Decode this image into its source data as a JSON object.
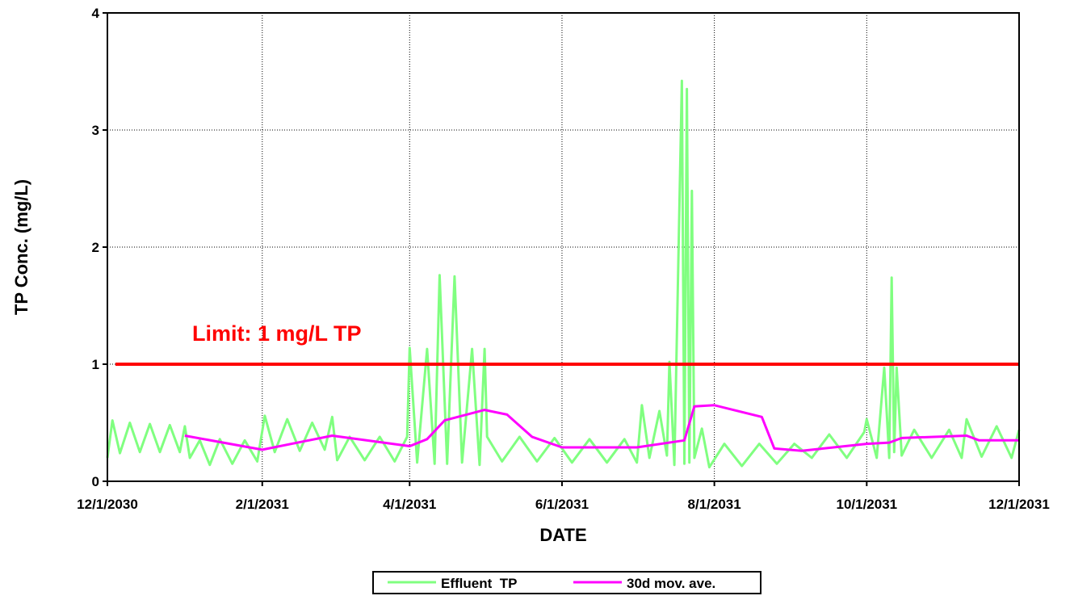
{
  "chart_data": {
    "type": "line",
    "xlabel": "DATE",
    "ylabel": "TP Conc. (mg/L)",
    "xlim": [
      "2030-12-01",
      "2031-12-01"
    ],
    "xticks": [
      {
        "value": "2030-12-01",
        "label": "12/1/2030"
      },
      {
        "value": "2031-02-01",
        "label": "2/1/2031"
      },
      {
        "value": "2031-04-01",
        "label": "4/1/2031"
      },
      {
        "value": "2031-06-01",
        "label": "6/1/2031"
      },
      {
        "value": "2031-08-01",
        "label": "8/1/2031"
      },
      {
        "value": "2031-10-01",
        "label": "10/1/2031"
      },
      {
        "value": "2031-12-01",
        "label": "12/1/2031"
      }
    ],
    "ylim": [
      0,
      4
    ],
    "yticks": [
      0,
      1,
      2,
      3,
      4
    ],
    "grid": true,
    "legend": "bottom",
    "limit": {
      "value": 1,
      "label": "Limit: 1 mg/L TP",
      "color": "#ff0000"
    },
    "series": [
      {
        "name": "Effluent  TP",
        "color": "#80ff80",
        "x": [
          "2030-12-01",
          "2030-12-03",
          "2030-12-06",
          "2030-12-10",
          "2030-12-14",
          "2030-12-18",
          "2030-12-22",
          "2030-12-26",
          "2030-12-30",
          "2031-01-01",
          "2031-01-03",
          "2031-01-07",
          "2031-01-11",
          "2031-01-15",
          "2031-01-20",
          "2031-01-25",
          "2031-01-30",
          "2031-02-02",
          "2031-02-06",
          "2031-02-11",
          "2031-02-16",
          "2031-02-21",
          "2031-02-26",
          "2031-03-01",
          "2031-03-03",
          "2031-03-08",
          "2031-03-14",
          "2031-03-20",
          "2031-03-26",
          "2031-03-31",
          "2031-04-01",
          "2031-04-04",
          "2031-04-08",
          "2031-04-11",
          "2031-04-13",
          "2031-04-16",
          "2031-04-19",
          "2031-04-22",
          "2031-04-26",
          "2031-04-29",
          "2031-05-01",
          "2031-05-02",
          "2031-05-08",
          "2031-05-15",
          "2031-05-22",
          "2031-05-29",
          "2031-06-05",
          "2031-06-12",
          "2031-06-19",
          "2031-06-26",
          "2031-07-01",
          "2031-07-03",
          "2031-07-06",
          "2031-07-10",
          "2031-07-13",
          "2031-07-14",
          "2031-07-16",
          "2031-07-19",
          "2031-07-20",
          "2031-07-21",
          "2031-07-22",
          "2031-07-23",
          "2031-07-24",
          "2031-07-27",
          "2031-07-30",
          "2031-08-05",
          "2031-08-12",
          "2031-08-19",
          "2031-08-26",
          "2031-09-02",
          "2031-09-09",
          "2031-09-16",
          "2031-09-23",
          "2031-09-30",
          "2031-10-01",
          "2031-10-05",
          "2031-10-08",
          "2031-10-10",
          "2031-10-11",
          "2031-10-12",
          "2031-10-13",
          "2031-10-15",
          "2031-10-20",
          "2031-10-27",
          "2031-11-03",
          "2031-11-08",
          "2031-11-10",
          "2031-11-16",
          "2031-11-22",
          "2031-11-28",
          "2031-12-01"
        ],
        "values": [
          0.2,
          0.52,
          0.24,
          0.5,
          0.25,
          0.49,
          0.25,
          0.48,
          0.25,
          0.47,
          0.2,
          0.35,
          0.14,
          0.36,
          0.15,
          0.35,
          0.17,
          0.56,
          0.25,
          0.53,
          0.26,
          0.5,
          0.27,
          0.55,
          0.18,
          0.38,
          0.18,
          0.38,
          0.17,
          0.38,
          1.14,
          0.16,
          1.13,
          0.15,
          1.76,
          0.15,
          1.75,
          0.16,
          1.13,
          0.14,
          1.13,
          0.38,
          0.17,
          0.38,
          0.17,
          0.37,
          0.16,
          0.36,
          0.16,
          0.36,
          0.16,
          0.65,
          0.2,
          0.6,
          0.22,
          1.02,
          0.14,
          3.42,
          0.15,
          3.35,
          0.16,
          2.48,
          0.2,
          0.45,
          0.12,
          0.32,
          0.13,
          0.32,
          0.15,
          0.32,
          0.2,
          0.4,
          0.2,
          0.42,
          0.53,
          0.2,
          0.97,
          0.2,
          1.74,
          0.25,
          0.97,
          0.22,
          0.44,
          0.2,
          0.44,
          0.2,
          0.53,
          0.21,
          0.47,
          0.2,
          0.44
        ]
      },
      {
        "name": "30d mov. ave.",
        "color": "#ff00ff",
        "x": [
          "2031-01-01",
          "2031-02-01",
          "2031-03-01",
          "2031-04-01",
          "2031-04-08",
          "2031-04-15",
          "2031-05-01",
          "2031-05-10",
          "2031-05-20",
          "2031-06-01",
          "2031-07-01",
          "2031-07-20",
          "2031-07-24",
          "2031-08-01",
          "2031-08-20",
          "2031-08-25",
          "2031-09-05",
          "2031-10-01",
          "2031-10-10",
          "2031-10-15",
          "2031-11-10",
          "2031-11-15",
          "2031-12-01"
        ],
        "values": [
          0.39,
          0.27,
          0.39,
          0.3,
          0.36,
          0.52,
          0.61,
          0.57,
          0.38,
          0.29,
          0.29,
          0.35,
          0.64,
          0.65,
          0.55,
          0.28,
          0.26,
          0.32,
          0.33,
          0.37,
          0.39,
          0.35,
          0.35
        ]
      }
    ]
  }
}
